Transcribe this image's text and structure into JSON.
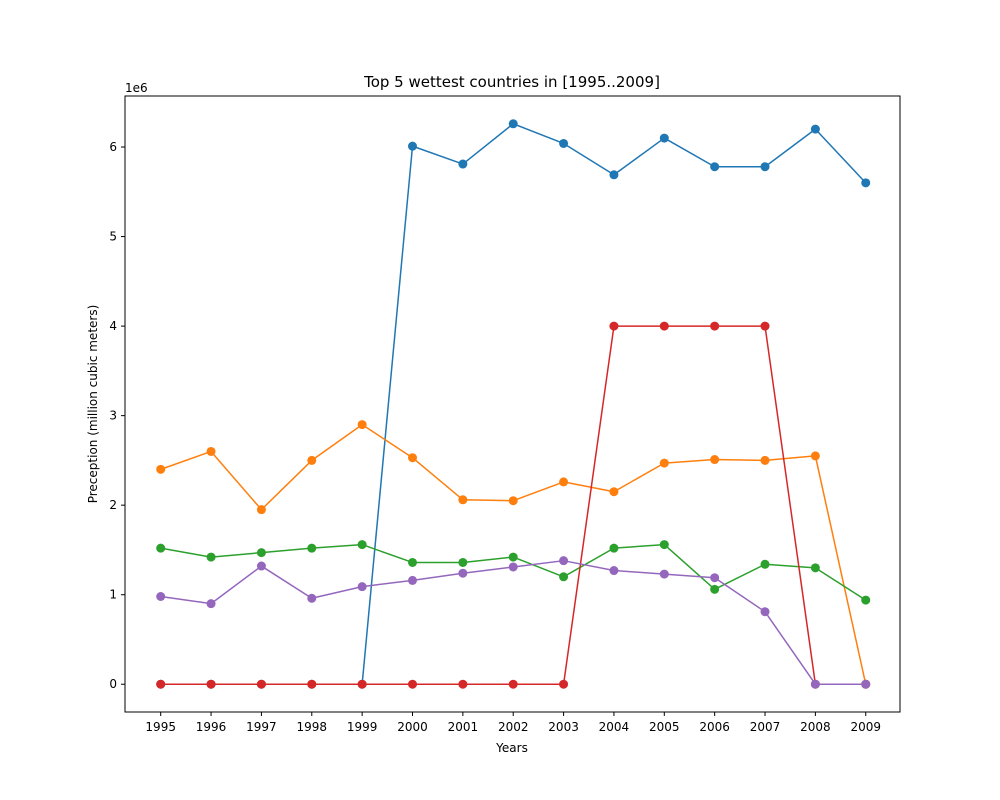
{
  "chart_data": {
    "type": "line",
    "title": "Top 5 wettest countries in [1995..2009]",
    "xlabel": "Years",
    "ylabel": "Preception (million cubic meters)",
    "y_offset_label": "1e6",
    "categories": [
      "1995",
      "1996",
      "1997",
      "1998",
      "1999",
      "2000",
      "2001",
      "2002",
      "2003",
      "2004",
      "2005",
      "2006",
      "2007",
      "2008",
      "2009"
    ],
    "y_ticks": [
      0,
      1,
      2,
      3,
      4,
      5,
      6
    ],
    "ylim": [
      -0.31,
      6.57
    ],
    "y_unit_multiplier": 1000000,
    "grid": false,
    "marker": "circle",
    "series": [
      {
        "color": "#1f77b4",
        "values": [
          0,
          0,
          0,
          0,
          0,
          6.01,
          5.81,
          6.26,
          6.04,
          5.69,
          6.1,
          5.78,
          5.78,
          6.2,
          5.6
        ]
      },
      {
        "color": "#ff7f0e",
        "values": [
          2.4,
          2.6,
          1.95,
          2.5,
          2.9,
          2.53,
          2.06,
          2.05,
          2.26,
          2.15,
          2.47,
          2.51,
          2.5,
          2.55,
          0
        ]
      },
      {
        "color": "#2ca02c",
        "values": [
          1.52,
          1.42,
          1.47,
          1.52,
          1.56,
          1.36,
          1.36,
          1.42,
          1.2,
          1.52,
          1.56,
          1.06,
          1.34,
          1.3,
          0.94
        ]
      },
      {
        "color": "#d62728",
        "values": [
          0,
          0,
          0,
          0,
          0,
          0,
          0,
          0,
          0,
          4.0,
          4.0,
          4.0,
          4.0,
          0,
          0
        ]
      },
      {
        "color": "#9467bd",
        "values": [
          0.98,
          0.9,
          1.32,
          0.96,
          1.09,
          1.16,
          1.24,
          1.31,
          1.38,
          1.27,
          1.23,
          1.19,
          0.81,
          0,
          0
        ]
      }
    ]
  }
}
